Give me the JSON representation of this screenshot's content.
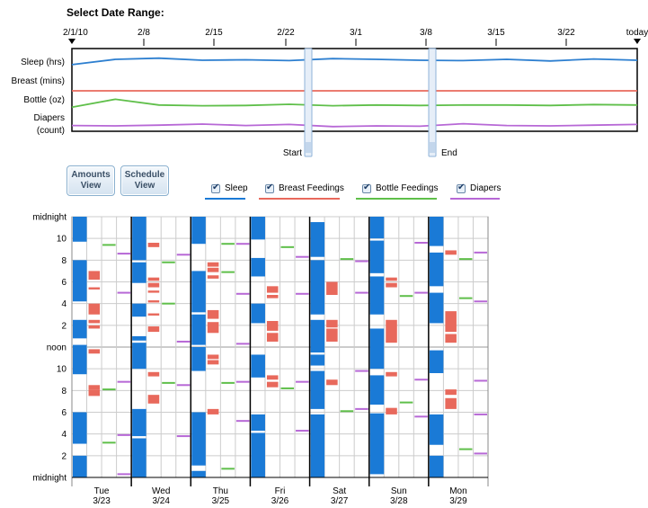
{
  "header": {
    "title": "Select Date Range:"
  },
  "range_handles": {
    "start_label": "Start",
    "end_label": "End",
    "start_tick": "2/22",
    "end_tick": "3/8"
  },
  "buttons": {
    "amounts": [
      "Amounts",
      "View"
    ],
    "schedule": [
      "Schedule",
      "View"
    ]
  },
  "legend": [
    {
      "label": "Sleep",
      "color": "#1a7ad6"
    },
    {
      "label": "Breast Feedings",
      "color": "#e8695c"
    },
    {
      "label": "Bottle Feedings",
      "color": "#5fbf4a"
    },
    {
      "label": "Diapers",
      "color": "#b768d6"
    }
  ],
  "chart_data": [
    {
      "type": "line",
      "x_ticks": [
        "2/1/10",
        "2/8",
        "2/15",
        "2/22",
        "3/1",
        "3/8",
        "3/15",
        "3/22",
        "today"
      ],
      "row_labels": [
        "Sleep (hrs)",
        "Breast (mins)",
        "Bottle (oz)",
        "Diapers",
        "(count)"
      ],
      "series": [
        {
          "name": "Sleep (hrs)",
          "color": "#2d7fd0",
          "values": [
            0.45,
            0.78,
            0.85,
            0.72,
            0.75,
            0.7,
            0.82,
            0.78,
            0.72,
            0.7,
            0.78,
            0.68,
            0.8,
            0.72
          ]
        },
        {
          "name": "Breast (mins)",
          "color": "#e8695c",
          "values": [
            0.5,
            0.5,
            0.5,
            0.5,
            0.5,
            0.5,
            0.5,
            0.5,
            0.5,
            0.5,
            0.5,
            0.5,
            0.5,
            0.5
          ]
        },
        {
          "name": "Bottle (oz)",
          "color": "#5fbf4a",
          "values": [
            0.3,
            0.85,
            0.45,
            0.4,
            0.42,
            0.5,
            0.4,
            0.45,
            0.42,
            0.45,
            0.45,
            0.42,
            0.48,
            0.45
          ]
        },
        {
          "name": "Diapers",
          "color": "#b768d6",
          "values": [
            0.55,
            0.5,
            0.6,
            0.75,
            0.55,
            0.7,
            0.4,
            0.5,
            0.45,
            0.8,
            0.55,
            0.5,
            0.6,
            0.7
          ]
        }
      ]
    },
    {
      "type": "schedule",
      "y_ticks": [
        "midnight",
        "10",
        "8",
        "6",
        "4",
        "2",
        "noon",
        "10",
        "8",
        "6",
        "4",
        "2",
        "midnight"
      ],
      "days": [
        {
          "day": "Tue",
          "date": "3/23",
          "sleep": [
            [
              0.0,
              2.0
            ],
            [
              3.1,
              6.0
            ],
            [
              9.5,
              12.2
            ],
            [
              12.8,
              14.5
            ],
            [
              16.2,
              20.0
            ],
            [
              21.7,
              24.0
            ]
          ],
          "breast": [
            [
              7.5,
              8.1
            ],
            [
              8.1,
              8.5
            ],
            [
              11.4,
              11.8
            ],
            [
              13.7,
              14.0
            ],
            [
              14.2,
              14.5
            ],
            [
              15.0,
              16.0
            ],
            [
              17.3,
              17.5
            ],
            [
              18.2,
              19.0
            ]
          ],
          "bottle": [
            [
              3.2,
              3.25
            ],
            [
              8.1,
              8.15
            ],
            [
              21.4,
              21.45
            ]
          ],
          "diaper": [
            [
              0.3,
              0.35
            ],
            [
              3.9,
              3.95
            ],
            [
              8.8,
              8.85
            ],
            [
              17.0,
              17.05
            ],
            [
              20.6,
              20.65
            ]
          ]
        },
        {
          "day": "Wed",
          "date": "3/24",
          "sleep": [
            [
              0.0,
              3.6
            ],
            [
              3.8,
              6.3
            ],
            [
              10.0,
              12.4
            ],
            [
              12.6,
              13.0
            ],
            [
              14.8,
              16.0
            ],
            [
              17.9,
              19.8
            ],
            [
              20.0,
              24.0
            ]
          ],
          "breast": [
            [
              6.8,
              7.6
            ],
            [
              9.3,
              9.7
            ],
            [
              13.4,
              13.9
            ],
            [
              14.9,
              15.1
            ],
            [
              16.1,
              16.3
            ],
            [
              17.0,
              17.2
            ],
            [
              17.5,
              17.9
            ],
            [
              18.1,
              18.4
            ],
            [
              21.2,
              21.6
            ]
          ],
          "bottle": [
            [
              8.7,
              8.75
            ],
            [
              16.0,
              16.05
            ],
            [
              19.8,
              19.85
            ]
          ],
          "diaper": [
            [
              3.8,
              3.85
            ],
            [
              8.5,
              8.55
            ],
            [
              12.5,
              12.55
            ],
            [
              20.5,
              20.55
            ]
          ]
        },
        {
          "day": "Thu",
          "date": "3/25",
          "sleep": [
            [
              0.0,
              0.6
            ],
            [
              1.1,
              6.0
            ],
            [
              9.8,
              12.0
            ],
            [
              12.2,
              15.0
            ],
            [
              15.2,
              19.0
            ],
            [
              21.5,
              24.0
            ]
          ],
          "breast": [
            [
              5.8,
              6.3
            ],
            [
              10.4,
              10.8
            ],
            [
              10.9,
              11.3
            ],
            [
              13.3,
              14.3
            ],
            [
              14.6,
              15.4
            ],
            [
              18.3,
              18.6
            ],
            [
              18.9,
              19.3
            ],
            [
              19.4,
              19.8
            ]
          ],
          "bottle": [
            [
              0.8,
              0.85
            ],
            [
              8.7,
              8.75
            ],
            [
              18.9,
              18.95
            ],
            [
              21.5,
              21.55
            ]
          ],
          "diaper": [
            [
              5.2,
              5.25
            ],
            [
              8.8,
              8.85
            ],
            [
              12.3,
              12.35
            ],
            [
              16.9,
              16.95
            ],
            [
              21.5,
              21.55
            ]
          ]
        },
        {
          "day": "Fri",
          "date": "3/26",
          "sleep": [
            [
              0.0,
              4.1
            ],
            [
              4.3,
              5.8
            ],
            [
              9.2,
              11.3
            ],
            [
              14.2,
              16.0
            ],
            [
              18.5,
              20.2
            ],
            [
              21.9,
              24.0
            ]
          ],
          "breast": [
            [
              8.3,
              8.8
            ],
            [
              9.0,
              9.4
            ],
            [
              12.5,
              13.3
            ],
            [
              13.5,
              14.4
            ],
            [
              16.5,
              16.8
            ],
            [
              17.0,
              17.6
            ]
          ],
          "bottle": [
            [
              8.2,
              8.25
            ],
            [
              21.2,
              21.25
            ]
          ],
          "diaper": [
            [
              4.3,
              4.35
            ],
            [
              8.8,
              8.85
            ],
            [
              16.9,
              16.95
            ],
            [
              20.3,
              20.35
            ]
          ]
        },
        {
          "day": "Sat",
          "date": "3/27",
          "sleep": [
            [
              0.0,
              5.8
            ],
            [
              6.3,
              9.8
            ],
            [
              10.3,
              11.3
            ],
            [
              11.5,
              14.5
            ],
            [
              15.0,
              20.0
            ],
            [
              20.3,
              23.5
            ]
          ],
          "breast": [
            [
              8.5,
              9.0
            ],
            [
              12.5,
              13.7
            ],
            [
              13.8,
              14.5
            ],
            [
              16.8,
              18.0
            ]
          ],
          "bottle": [
            [
              6.1,
              6.15
            ],
            [
              20.1,
              20.15
            ]
          ],
          "diaper": [
            [
              6.3,
              6.35
            ],
            [
              9.8,
              9.85
            ],
            [
              17.0,
              17.05
            ],
            [
              19.9,
              19.95
            ]
          ]
        },
        {
          "day": "Sun",
          "date": "3/28",
          "sleep": [
            [
              0.3,
              5.9
            ],
            [
              6.7,
              9.4
            ],
            [
              10.0,
              13.7
            ],
            [
              15.0,
              18.5
            ],
            [
              18.8,
              21.8
            ],
            [
              22.0,
              24.0
            ]
          ],
          "breast": [
            [
              5.8,
              6.4
            ],
            [
              9.3,
              9.7
            ],
            [
              12.4,
              14.5
            ],
            [
              17.5,
              17.9
            ],
            [
              18.1,
              18.4
            ]
          ],
          "bottle": [
            [
              6.9,
              6.95
            ],
            [
              16.7,
              16.75
            ]
          ],
          "diaper": [
            [
              5.6,
              5.65
            ],
            [
              9.0,
              9.05
            ],
            [
              17.0,
              17.05
            ],
            [
              21.6,
              21.65
            ]
          ]
        },
        {
          "day": "Mon",
          "date": "3/29",
          "sleep": [
            [
              0.0,
              2.0
            ],
            [
              3.0,
              5.8
            ],
            [
              9.6,
              11.7
            ],
            [
              14.2,
              17.0
            ],
            [
              17.6,
              20.7
            ],
            [
              21.3,
              24.0
            ]
          ],
          "breast": [
            [
              6.3,
              7.3
            ],
            [
              7.6,
              8.1
            ],
            [
              12.4,
              13.2
            ],
            [
              13.4,
              15.3
            ],
            [
              20.5,
              20.9
            ]
          ],
          "bottle": [
            [
              2.6,
              2.65
            ],
            [
              16.5,
              16.55
            ],
            [
              20.1,
              20.15
            ]
          ],
          "diaper": [
            [
              2.2,
              2.25
            ],
            [
              5.8,
              5.85
            ],
            [
              8.9,
              8.95
            ],
            [
              16.2,
              16.25
            ],
            [
              20.7,
              20.75
            ]
          ]
        }
      ]
    }
  ]
}
